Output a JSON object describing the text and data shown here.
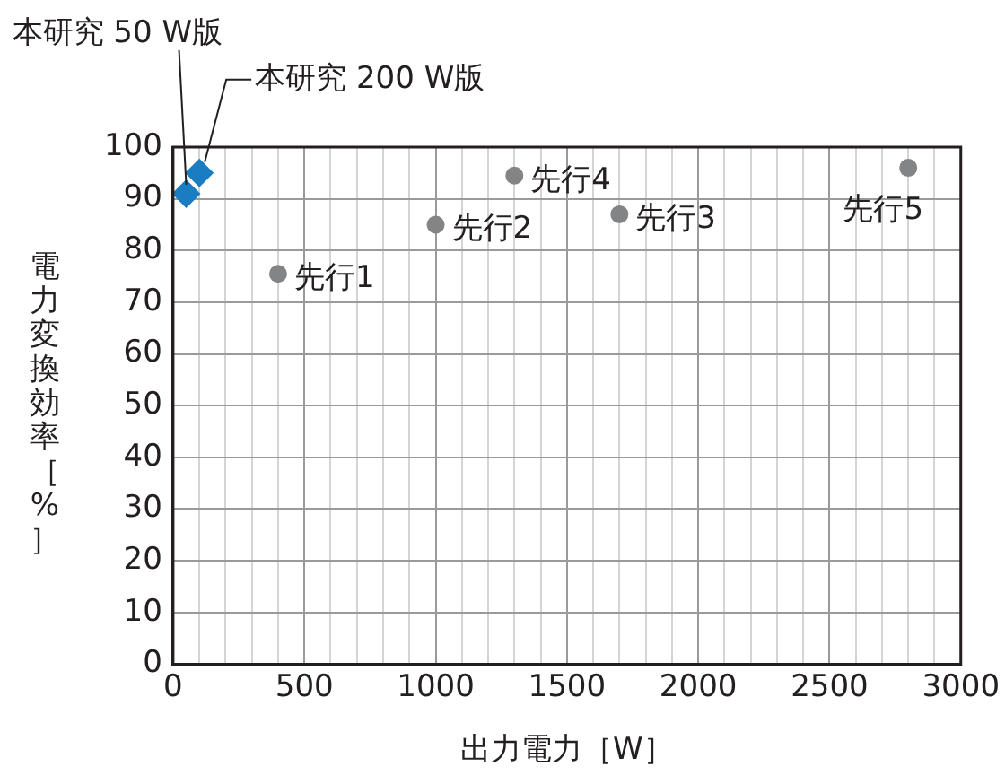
{
  "chart_data": {
    "type": "scatter",
    "xlabel": "出力電力［W］",
    "ylabel": "電力変換効率［%］",
    "xlim": [
      0,
      3000
    ],
    "ylim": [
      0,
      100
    ],
    "xticks": [
      0,
      {
        "value": 100,
        "label": null
      },
      {
        "value": 200,
        "label": null
      },
      {
        "value": 300,
        "label": null
      },
      {
        "value": 400,
        "label": null
      },
      500,
      {
        "value": 600,
        "label": null
      },
      {
        "value": 700,
        "label": null
      },
      {
        "value": 800,
        "label": null
      },
      {
        "value": 900,
        "label": null
      },
      1000,
      {
        "value": 1100,
        "label": null
      },
      {
        "value": 1200,
        "label": null
      },
      {
        "value": 1300,
        "label": null
      },
      {
        "value": 1400,
        "label": null
      },
      1500,
      {
        "value": 1600,
        "label": null
      },
      {
        "value": 1700,
        "label": null
      },
      {
        "value": 1800,
        "label": null
      },
      {
        "value": 1900,
        "label": null
      },
      2000,
      {
        "value": 2100,
        "label": null
      },
      {
        "value": 2200,
        "label": null
      },
      {
        "value": 2300,
        "label": null
      },
      {
        "value": 2400,
        "label": null
      },
      2500,
      {
        "value": 2600,
        "label": null
      },
      {
        "value": 2700,
        "label": null
      },
      {
        "value": 2800,
        "label": null
      },
      {
        "value": 2900,
        "label": null
      },
      3000
    ],
    "yticks": [
      0,
      10,
      20,
      30,
      40,
      50,
      60,
      70,
      80,
      90,
      100
    ],
    "grid": true,
    "legend": false,
    "series": [
      {
        "color": "#1a7dc2",
        "marker": "diamond",
        "x": [
          50,
          100
        ],
        "values": [
          91,
          95
        ]
      },
      {
        "color": "#838486",
        "marker": "circle",
        "x": [
          400,
          1000,
          1300,
          1700,
          2800
        ],
        "values": [
          75.5,
          85,
          94.5,
          87,
          96
        ]
      }
    ],
    "annotations": [
      {
        "text": "本研究 50 W版",
        "x": 50,
        "y": 91
      },
      {
        "text": "本研究 200 W版",
        "x": 100,
        "y": 95
      },
      {
        "text": "先行1",
        "x": 400,
        "y": 75.5
      },
      {
        "text": "先行2",
        "x": 1000,
        "y": 85
      },
      {
        "text": "先行4",
        "x": 1300,
        "y": 94.5
      },
      {
        "text": "先行3",
        "x": 1700,
        "y": 87
      },
      {
        "text": "先行5",
        "x": 2800,
        "y": 96
      }
    ]
  }
}
